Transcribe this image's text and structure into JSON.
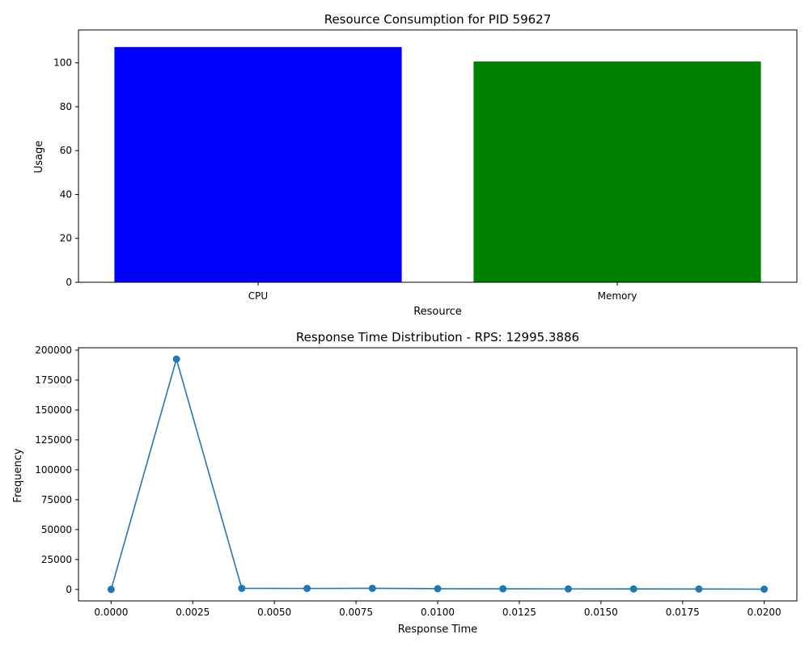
{
  "chart_data": [
    {
      "type": "bar",
      "title": "Resource Consumption for PID 59627",
      "xlabel": "Resource",
      "ylabel": "Usage",
      "categories": [
        "CPU",
        "Memory"
      ],
      "values": [
        107.2,
        100.6
      ],
      "colors": [
        "#0000ff",
        "#008000"
      ],
      "ylim": [
        0,
        115
      ],
      "yticks": [
        0,
        20,
        40,
        60,
        80,
        100
      ],
      "grid": false
    },
    {
      "type": "line",
      "title": "Response Time Distribution - RPS: 12995.3886",
      "xlabel": "Response Time",
      "ylabel": "Frequency",
      "x": [
        0.0,
        0.002,
        0.004,
        0.006,
        0.008,
        0.01,
        0.012,
        0.014,
        0.016,
        0.018,
        0.02
      ],
      "series": [
        {
          "values": [
            0,
            192500,
            900,
            800,
            900,
            600,
            500,
            450,
            400,
            350,
            200
          ],
          "color": "#1f77b4",
          "marker": "circle"
        }
      ],
      "xlim": [
        -0.001,
        0.021
      ],
      "ylim": [
        -9600,
        202000
      ],
      "xticks": [
        0.0,
        0.0025,
        0.005,
        0.0075,
        0.01,
        0.0125,
        0.015,
        0.0175,
        0.02
      ],
      "xtick_labels": [
        "0.0000",
        "0.0025",
        "0.0050",
        "0.0075",
        "0.0100",
        "0.0125",
        "0.0150",
        "0.0175",
        "0.0200"
      ],
      "yticks": [
        0,
        25000,
        50000,
        75000,
        100000,
        125000,
        150000,
        175000,
        200000
      ],
      "grid": false
    }
  ]
}
